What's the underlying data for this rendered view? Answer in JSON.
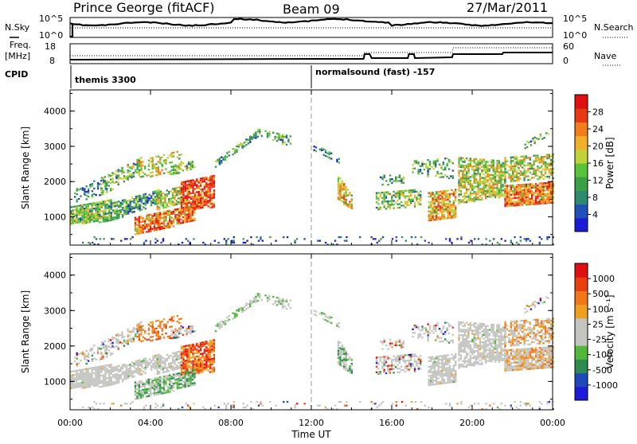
{
  "header": {
    "station": "Prince George (fitACF)",
    "beam": "Beam 09",
    "date": "27/Mar/2011"
  },
  "status_panels": {
    "nsky_label": "N.Sky",
    "nsearch_label": "N.Search",
    "noise_ticks_left": [
      "10^5",
      "10^0"
    ],
    "noise_ticks_right": [
      "10^5",
      "10^0"
    ],
    "freq_label_1": "Freq.",
    "freq_label_2": "[MHz]",
    "freq_ticks": [
      "18",
      "8"
    ],
    "nave_label": "Nave",
    "nave_ticks": [
      "60",
      "0"
    ],
    "cpid_label": "CPID",
    "cpid_1": "themis 3300",
    "cpid_2": "normalsound (fast) -157"
  },
  "colors": {
    "power_scale": [
      "#1c1cd6",
      "#2050b8",
      "#2e8a6e",
      "#3aa043",
      "#58c23a",
      "#c2d23a",
      "#f0b02c",
      "#f07c1c",
      "#e83a12",
      "#e01010"
    ],
    "velocity_scale": [
      "#1c1cd6",
      "#2048b8",
      "#2e8a50",
      "#50b83a",
      "#c4c4c0",
      "#c4c4c0",
      "#f0a020",
      "#f07818",
      "#e84010",
      "#e01010"
    ],
    "velocity_ground": "#c4c4c0"
  },
  "chart_data": [
    {
      "type": "heatmap",
      "name": "power",
      "ylabel": "Slant Range [km]",
      "colorbar_label": "Power [dB]",
      "colorbar_ticks": [
        "28",
        "24",
        "20",
        "16",
        "12",
        "8",
        "4"
      ],
      "colorbar_range": [
        0,
        32
      ],
      "y_ticks": [
        "4000",
        "3000",
        "2000",
        "1000"
      ],
      "ylim": [
        200,
        4600
      ],
      "xlim": [
        0,
        24
      ]
    },
    {
      "type": "heatmap",
      "name": "velocity",
      "ylabel": "Slant Range [km]",
      "colorbar_label": "Velocity [m s⁻¹]",
      "colorbar_ticks": [
        "1000",
        "500",
        "100",
        "25",
        "-25",
        "-100",
        "-500",
        "-1000"
      ],
      "y_ticks": [
        "4000",
        "3000",
        "2000",
        "1000"
      ],
      "ylim": [
        200,
        4600
      ],
      "xlim": [
        0,
        24
      ]
    }
  ],
  "x_axis": {
    "label": "Time UT",
    "ticks": [
      "00:00",
      "04:00",
      "08:00",
      "12:00",
      "16:00",
      "20:00",
      "00:00"
    ]
  }
}
